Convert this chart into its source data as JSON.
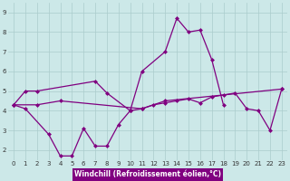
{
  "lines": [
    {
      "x": [
        0,
        1,
        3,
        4,
        5,
        6,
        7,
        8,
        9,
        10
      ],
      "y": [
        4.3,
        4.1,
        2.8,
        1.7,
        1.7,
        3.1,
        2.2,
        2.2,
        3.3,
        4.0
      ]
    },
    {
      "x": [
        10,
        11,
        13,
        14,
        15,
        16,
        17,
        18
      ],
      "y": [
        4.0,
        6.0,
        7.0,
        8.7,
        8.0,
        8.1,
        6.6,
        4.3
      ]
    },
    {
      "x": [
        0,
        1,
        2,
        7,
        8,
        10,
        11,
        13,
        23
      ],
      "y": [
        4.3,
        5.0,
        5.0,
        5.5,
        4.9,
        4.0,
        4.1,
        4.5,
        5.1
      ]
    },
    {
      "x": [
        0,
        2,
        4,
        11,
        12,
        13,
        14,
        15,
        16,
        17,
        18,
        19,
        20,
        21,
        22,
        23
      ],
      "y": [
        4.3,
        4.3,
        4.5,
        4.1,
        4.3,
        4.4,
        4.5,
        4.6,
        4.4,
        4.7,
        4.8,
        4.9,
        4.1,
        4.0,
        3.0,
        5.1
      ]
    }
  ],
  "line_color": "#800080",
  "bg_color": "#cce8e8",
  "grid_color": "#aacccc",
  "xlabel": "Windchill (Refroidissement éolien,°C)",
  "xlabel_bg": "#800080",
  "xlabel_fg": "#ffffff",
  "ylim": [
    1.5,
    9.5
  ],
  "xlim": [
    -0.5,
    23.5
  ],
  "yticks": [
    2,
    3,
    4,
    5,
    6,
    7,
    8,
    9
  ],
  "xticks": [
    0,
    1,
    2,
    3,
    4,
    5,
    6,
    7,
    8,
    9,
    10,
    11,
    12,
    13,
    14,
    15,
    16,
    17,
    18,
    19,
    20,
    21,
    22,
    23
  ],
  "marker_size": 2.5,
  "line_width": 0.9,
  "tick_fontsize": 5.0,
  "xlabel_fontsize": 5.5
}
